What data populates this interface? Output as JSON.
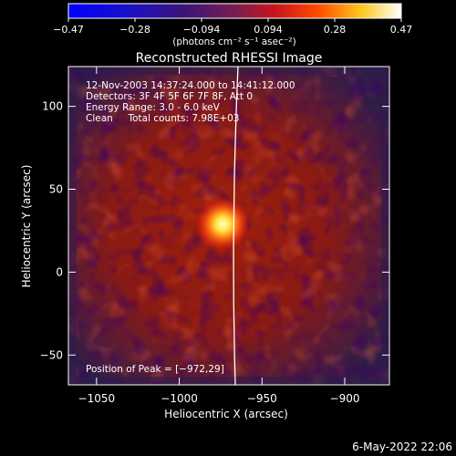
{
  "chart_data": {
    "type": "heatmap",
    "title": "Reconstructed RHESSI Image",
    "xlabel": "Heliocentric X (arcsec)",
    "ylabel": "Heliocentric Y (arcsec)",
    "xlim": [
      -1067,
      -873
    ],
    "ylim": [
      -68,
      124
    ],
    "x_ticks": [
      -1050,
      -1000,
      -950,
      -900
    ],
    "y_ticks": [
      -50,
      0,
      50,
      100
    ],
    "x_tick_labels": [
      "−1050",
      "−1000",
      "−950",
      "−900"
    ],
    "y_tick_labels": [
      "−50",
      "0",
      "50",
      "100"
    ],
    "colorbar": {
      "min": -0.47,
      "max": 0.47,
      "tick_labels": [
        "−0.47",
        "−0.28",
        "−0.094",
        "0.094",
        "0.28",
        "0.47"
      ],
      "unit_label": "(photons cm⁻² s⁻¹ asec⁻²)"
    },
    "peak": {
      "x": -972,
      "y": 29
    },
    "annotations": [
      "12-Nov-2003 14:37:24.000 to 14:41:12.000",
      "Detectors: 3F 4F 5F 6F 7F 8F, Att 0",
      "Energy Range: 3.0 - 6.0 keV",
      "Clean     Total counts: 7.98E+03"
    ],
    "peak_label": "Position of Peak = [−972,29]"
  },
  "footer": {
    "date": "6-May-2022 22:06"
  },
  "colors": {
    "background": "#000000",
    "bright": "#ffffc8",
    "mid": "#c81e0a",
    "low": "#3c1e46"
  }
}
